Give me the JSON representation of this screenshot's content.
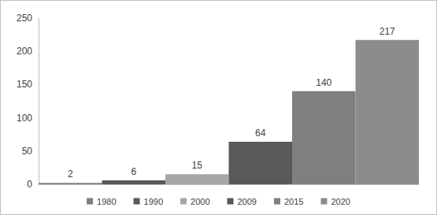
{
  "chart_data": {
    "type": "bar",
    "categories": [
      "1980",
      "1990",
      "2000",
      "2009",
      "2015",
      "2020"
    ],
    "values": [
      2,
      6,
      15,
      64,
      140,
      217
    ],
    "colors": [
      "#7f7f7f",
      "#595959",
      "#a6a6a6",
      "#595959",
      "#7f7f7f",
      "#8c8c8c"
    ],
    "ylim": [
      0,
      250
    ],
    "yticks": [
      0,
      50,
      100,
      150,
      200,
      250
    ],
    "grid": false,
    "legend": "bottom",
    "data_labels": true,
    "tick_labels": "y"
  }
}
